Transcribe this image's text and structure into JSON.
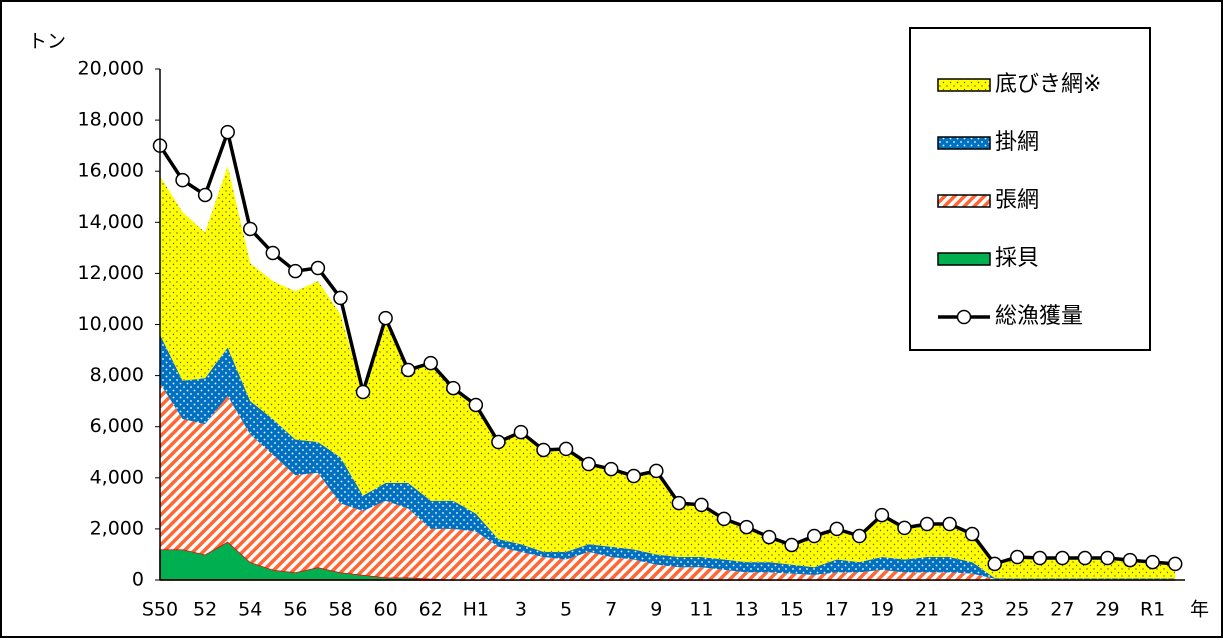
{
  "chart_data": {
    "type": "stacked-area",
    "y_label": "トン",
    "x_label": "年",
    "categories": [
      "S50",
      null,
      "52",
      null,
      "54",
      null,
      "56",
      null,
      "58",
      null,
      "60",
      null,
      "62",
      null,
      "H1",
      null,
      "3",
      null,
      "5",
      null,
      "7",
      null,
      "9",
      null,
      "11",
      null,
      "13",
      null,
      "15",
      null,
      "17",
      null,
      "19",
      null,
      "21",
      null,
      "23",
      null,
      "25",
      null,
      "27",
      null,
      "29",
      null,
      "R1",
      null
    ],
    "ylim": [
      0,
      20000
    ],
    "yticks": [
      0,
      {
        "value": 2000,
        "label": "2,000"
      },
      {
        "value": 4000,
        "label": "4,000"
      },
      {
        "value": 6000,
        "label": "6,000"
      },
      {
        "value": 8000,
        "label": "8,000"
      },
      {
        "value": 10000,
        "label": "10,000"
      },
      {
        "value": 12000,
        "label": "12,000"
      },
      {
        "value": 14000,
        "label": "14,000"
      },
      {
        "value": 16000,
        "label": "16,000"
      },
      {
        "value": 18000,
        "label": "18,000"
      },
      {
        "value": 20000,
        "label": "20,000"
      }
    ],
    "legend": "upper right",
    "series": [
      {
        "name": "採貝",
        "type": "area",
        "color": "#00b050",
        "values": [
          1200,
          1200,
          1000,
          1500,
          700,
          400,
          300,
          500,
          300,
          200,
          100,
          100,
          50,
          0,
          0,
          0,
          0,
          0,
          0,
          0,
          0,
          0,
          0,
          0,
          0,
          0,
          0,
          0,
          0,
          0,
          0,
          0,
          0,
          0,
          0,
          0,
          0,
          0,
          0,
          0,
          0,
          0,
          0,
          0,
          0,
          0
        ]
      },
      {
        "name": "張網",
        "type": "area",
        "color": "#ff6633",
        "values": [
          6500,
          5100,
          5100,
          5700,
          5000,
          4500,
          3800,
          3700,
          2700,
          2500,
          3000,
          2700,
          1950,
          2000,
          1900,
          1300,
          1100,
          900,
          800,
          1100,
          900,
          800,
          600,
          500,
          500,
          400,
          300,
          300,
          250,
          200,
          300,
          300,
          400,
          300,
          300,
          300,
          250,
          50,
          30,
          30,
          30,
          30,
          30,
          30,
          30,
          30
        ]
      },
      {
        "name": "掛網",
        "type": "area",
        "color": "#0070c0",
        "values": [
          1900,
          1500,
          1800,
          1900,
          1300,
          1400,
          1400,
          1200,
          1800,
          600,
          700,
          1000,
          1100,
          1100,
          700,
          300,
          300,
          200,
          300,
          300,
          400,
          400,
          400,
          400,
          400,
          400,
          400,
          400,
          350,
          300,
          500,
          400,
          500,
          500,
          600,
          600,
          450,
          30,
          30,
          30,
          30,
          30,
          30,
          30,
          30,
          30
        ]
      },
      {
        "name": "底びき網※",
        "type": "area",
        "color": "#ffff00",
        "values": [
          6200,
          6600,
          5700,
          7100,
          5400,
          5400,
          5800,
          6300,
          5600,
          4000,
          6300,
          4420,
          5390,
          4410,
          4250,
          3800,
          4390,
          3990,
          4030,
          3140,
          3040,
          2870,
          3270,
          2110,
          2040,
          1590,
          1370,
          980,
          770,
          1220,
          1200,
          1020,
          1640,
          1240,
          1290,
          1290,
          1100,
          550,
          840,
          800,
          800,
          800,
          800,
          720,
          640,
          570
        ]
      },
      {
        "name": "総漁獲量",
        "type": "line",
        "color": "#000000",
        "values": [
          17000,
          15650,
          15070,
          17530,
          13740,
          12800,
          12090,
          12210,
          11040,
          7360,
          10250,
          8220,
          8490,
          7510,
          6850,
          5400,
          5790,
          5090,
          5130,
          4540,
          4340,
          4070,
          4270,
          3010,
          2940,
          2390,
          2070,
          1680,
          1370,
          1720,
          2000,
          1720,
          2540,
          2040,
          2190,
          2190,
          1800,
          630,
          900,
          860,
          860,
          860,
          860,
          780,
          700,
          630
        ]
      }
    ]
  }
}
